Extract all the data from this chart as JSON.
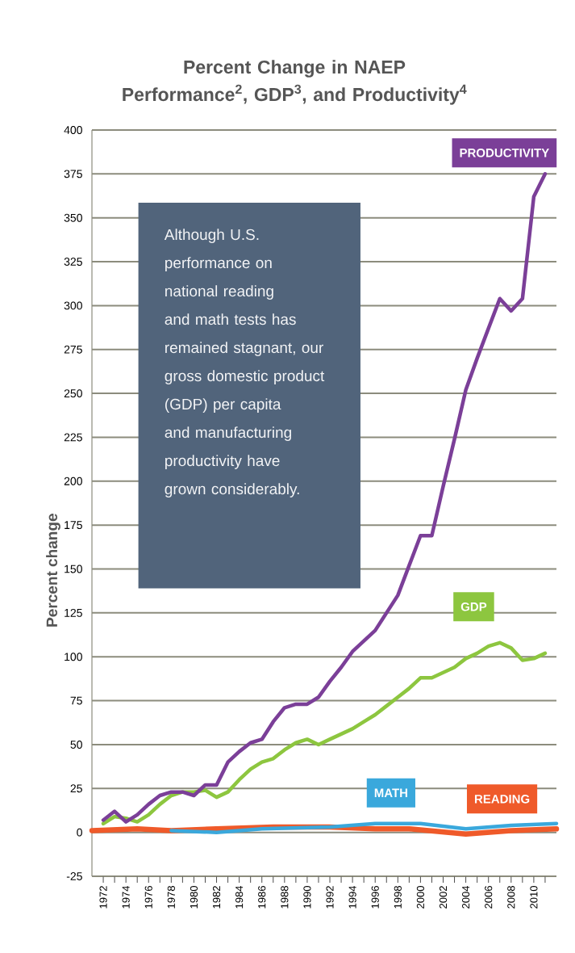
{
  "chart_data": {
    "type": "line",
    "title": "Percent Change in NAEP Performance$^{2}$, GDP$^{3}$, and Productivity$^{4}$",
    "ylabel": "Percent change",
    "annotations": [
      "Although U.S. performance on national reading and math tests has remained stagnant, our gross domestic product (GDP) per capita and manufacturing productivity have grown considerably."
    ],
    "xlim": [
      1971,
      2012
    ],
    "ylim": [
      -25,
      400
    ],
    "xticks": [
      1972,
      {
        "value": 1973,
        "label": null
      },
      1974,
      {
        "value": 1975,
        "label": null
      },
      1976,
      {
        "value": 1977,
        "label": null
      },
      1978,
      {
        "value": 1979,
        "label": null
      },
      1980,
      {
        "value": 1981,
        "label": null
      },
      1982,
      {
        "value": 1983,
        "label": null
      },
      1984,
      {
        "value": 1985,
        "label": null
      },
      1986,
      {
        "value": 1987,
        "label": null
      },
      1988,
      {
        "value": 1989,
        "label": null
      },
      1990,
      {
        "value": 1991,
        "label": null
      },
      1992,
      {
        "value": 1993,
        "label": null
      },
      1994,
      {
        "value": 1995,
        "label": null
      },
      1996,
      {
        "value": 1997,
        "label": null
      },
      1998,
      {
        "value": 1999,
        "label": null
      },
      2000,
      {
        "value": 2001,
        "label": null
      },
      2002,
      {
        "value": 2003,
        "label": null
      },
      2004,
      {
        "value": 2005,
        "label": null
      },
      2006,
      {
        "value": 2007,
        "label": null
      },
      2008,
      {
        "value": 2009,
        "label": null
      },
      2010,
      {
        "value": 2011,
        "label": null
      }
    ],
    "yticks": [
      -25,
      0,
      25,
      50,
      75,
      100,
      125,
      150,
      175,
      200,
      225,
      250,
      275,
      300,
      325,
      350,
      375,
      400
    ],
    "grid": "y",
    "marker": "none",
    "line_style": "solid",
    "series": [
      {
        "name": "READING",
        "color": "#ef5a2a",
        "x": [
          1971,
          1975,
          1978,
          1982,
          1987,
          1992,
          1996,
          1999,
          2004,
          2008,
          2012
        ],
        "values": [
          1,
          2,
          1,
          2,
          3,
          3,
          2,
          2,
          -1,
          1,
          2
        ]
      },
      {
        "name": "MATH",
        "color": "#3aa8dc",
        "x": [
          1978,
          1982,
          1986,
          1992,
          1996,
          2000,
          2004,
          2008,
          2012
        ],
        "values": [
          1,
          0,
          2,
          3,
          5,
          5,
          2,
          4,
          5
        ]
      },
      {
        "name": "GDP",
        "color": "#8dc63f",
        "x": [
          1972,
          1973,
          1974,
          1975,
          1976,
          1977,
          1978,
          1979,
          1980,
          1981,
          1982,
          1983,
          1984,
          1985,
          1986,
          1987,
          1988,
          1989,
          1990,
          1991,
          1992,
          1993,
          1994,
          1995,
          1996,
          1997,
          1998,
          1999,
          2000,
          2001,
          2002,
          2003,
          2004,
          2005,
          2006,
          2007,
          2008,
          2009,
          2010,
          2011
        ],
        "values": [
          5,
          9,
          8,
          6,
          10,
          16,
          21,
          23,
          23,
          24,
          20,
          23,
          30,
          36,
          40,
          42,
          47,
          51,
          53,
          50,
          53,
          56,
          59,
          63,
          67,
          72,
          77,
          82,
          88,
          88,
          91,
          94,
          99,
          102,
          106,
          108,
          105,
          98,
          99,
          102
        ]
      },
      {
        "name": "PRODUCTIVITY",
        "color": "#7b3f98",
        "x": [
          1972,
          1973,
          1974,
          1975,
          1976,
          1977,
          1978,
          1979,
          1980,
          1981,
          1982,
          1983,
          1984,
          1985,
          1986,
          1987,
          1988,
          1989,
          1990,
          1991,
          1992,
          1993,
          1994,
          1995,
          1996,
          1997,
          1998,
          1999,
          2000,
          2001,
          2002,
          2003,
          2004,
          2005,
          2006,
          2007,
          2008,
          2009,
          2010,
          2011
        ],
        "values": [
          7,
          12,
          6,
          10,
          16,
          21,
          23,
          23,
          21,
          27,
          27,
          40,
          46,
          51,
          53,
          63,
          71,
          73,
          73,
          77,
          86,
          94,
          103,
          109,
          115,
          125,
          135,
          152,
          169,
          169,
          197,
          224,
          252,
          270,
          287,
          304,
          297,
          304,
          362,
          375
        ]
      }
    ]
  }
}
